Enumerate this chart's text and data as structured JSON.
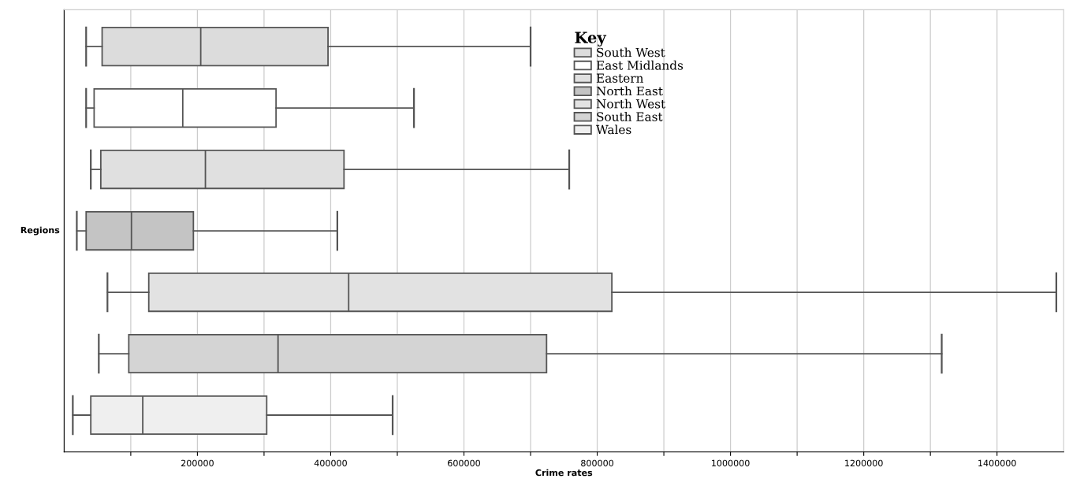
{
  "chart_data": {
    "type": "box",
    "orientation": "horizontal",
    "xlabel": "Crime rates",
    "ylabel": "Regions",
    "legend_title": "Key",
    "legend": "top",
    "grid": "x",
    "categories": [
      null,
      null,
      null,
      null,
      null,
      null,
      null
    ],
    "xlim": [
      0,
      1500000
    ],
    "xticks": [
      {
        "value": 100000,
        "label": null
      },
      200000,
      {
        "value": 300000,
        "label": null
      },
      400000,
      {
        "value": 500000,
        "label": null
      },
      600000,
      {
        "value": 700000,
        "label": null
      },
      800000,
      {
        "value": 900000,
        "label": null
      },
      1000000,
      {
        "value": 1100000,
        "label": null
      },
      1200000,
      {
        "value": 1300000,
        "label": null
      },
      1400000
    ],
    "series": [
      {
        "name": "South West",
        "color": "#dcdcdc",
        "boxes": [
          {
            "low": 33000,
            "q1": 57000,
            "median": 205000,
            "q3": 396000,
            "high": 700000
          },
          null,
          null,
          null,
          null,
          null,
          null
        ]
      },
      {
        "name": "East Midlands",
        "color": "#ffffff",
        "boxes": [
          null,
          {
            "low": 33000,
            "q1": 45000,
            "median": 178000,
            "q3": 318000,
            "high": 525000
          },
          null,
          null,
          null,
          null,
          null
        ]
      },
      {
        "name": "Eastern",
        "color": "#e0e0e0",
        "boxes": [
          null,
          null,
          {
            "low": 40000,
            "q1": 55000,
            "median": 212000,
            "q3": 420000,
            "high": 758000
          },
          null,
          null,
          null,
          null
        ]
      },
      {
        "name": "North East",
        "color": "#c4c4c4",
        "boxes": [
          null,
          null,
          null,
          {
            "low": 19000,
            "q1": 33000,
            "median": 101000,
            "q3": 194000,
            "high": 410000
          },
          null,
          null,
          null
        ]
      },
      {
        "name": "North West",
        "color": "#e2e2e2",
        "boxes": [
          null,
          null,
          null,
          null,
          {
            "low": 65000,
            "q1": 127000,
            "median": 427000,
            "q3": 822000,
            "high": 1489000
          },
          null,
          null
        ]
      },
      {
        "name": "South East",
        "color": "#d4d4d4",
        "boxes": [
          null,
          null,
          null,
          null,
          null,
          {
            "low": 52000,
            "q1": 97000,
            "median": 321000,
            "q3": 724000,
            "high": 1317000
          },
          null
        ]
      },
      {
        "name": "Wales",
        "color": "#efefef",
        "boxes": [
          null,
          null,
          null,
          null,
          null,
          null,
          {
            "low": 13000,
            "q1": 40000,
            "median": 118000,
            "q3": 304000,
            "high": 493000
          }
        ]
      }
    ]
  }
}
